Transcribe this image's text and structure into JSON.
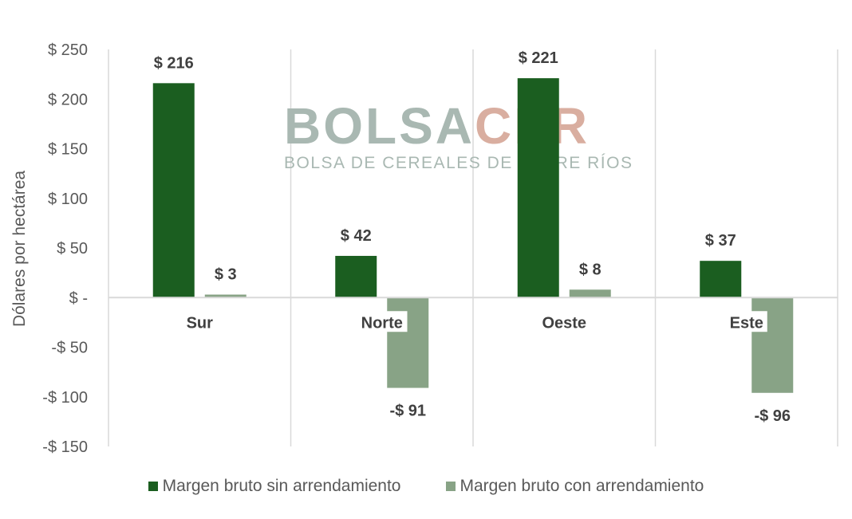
{
  "chart_data": {
    "type": "bar",
    "categories": [
      "Sur",
      "Norte",
      "Oeste",
      "Este"
    ],
    "series": [
      {
        "name": "Margen bruto sin arrendamiento",
        "values": [
          216,
          42,
          221,
          37
        ],
        "labels": [
          "$ 216",
          "$ 42",
          "$ 221",
          "$ 37"
        ],
        "color": "#1b5e20"
      },
      {
        "name": "Margen bruto con arrendamiento",
        "values": [
          3,
          -91,
          8,
          -96
        ],
        "labels": [
          "$ 3",
          "-$ 91",
          "$ 8",
          "-$ 96"
        ],
        "color": "#88a386"
      }
    ],
    "ylabel": "Dólares por hectárea",
    "ylim": [
      -150,
      250
    ],
    "yticks": [
      250,
      200,
      150,
      100,
      50,
      0,
      -50,
      -100,
      -150
    ],
    "ytick_labels": [
      "$ 250",
      "$ 200",
      "$ 150",
      "$ 100",
      "$ 50",
      "$ -",
      "-$ 50",
      "-$ 100",
      "-$ 150"
    ],
    "grid": "vertical category separators",
    "legend_position": "bottom"
  },
  "watermark": {
    "brand_part1": "BOLSA",
    "brand_part2": "CER",
    "subtitle": "BOLSA DE CEREALES DE ENTRE RÍOS",
    "color1": "#a9b8b2",
    "color2": "#d9aea0"
  }
}
